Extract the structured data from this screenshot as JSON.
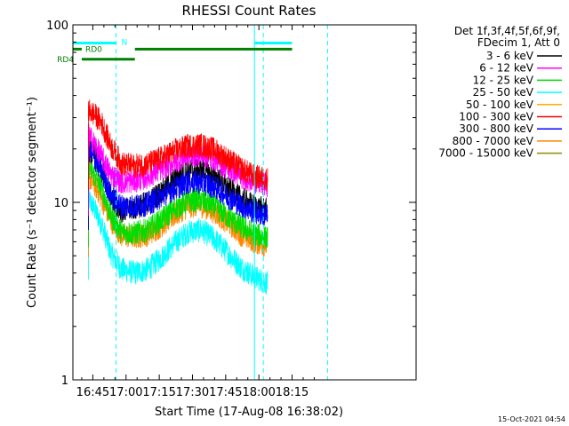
{
  "chart_data": {
    "type": "line",
    "title": "RHESSI Count Rates",
    "xlabel": "Start Time (17-Aug-08 16:38:02)",
    "ylabel": "Count Rate (s⁻¹ detector segment⁻¹)",
    "x_scale": "time",
    "y_scale": "log",
    "xlim_minutes": [
      -2,
      153
    ],
    "ylim": [
      1,
      100
    ],
    "x_ticks": [
      {
        "label": "16:45",
        "minute": 7
      },
      {
        "label": "17:00",
        "minute": 22
      },
      {
        "label": "17:15",
        "minute": 37
      },
      {
        "label": "17:30",
        "minute": 52
      },
      {
        "label": "17:45",
        "minute": 67
      },
      {
        "label": "18:00",
        "minute": 82
      },
      {
        "label": "18:15",
        "minute": 97
      }
    ],
    "y_ticks": [
      {
        "label": "1",
        "value": 1
      },
      {
        "label": "10",
        "value": 10
      },
      {
        "label": "100",
        "value": 100
      }
    ],
    "legend": {
      "header": [
        "Det 1f,3f,4f,5f,6f,9f,",
        "FDecim 1, Att 0"
      ],
      "placement": "right"
    },
    "time_x": [
      -2.0,
      4.8,
      5.0,
      8.0,
      11.0,
      15.0,
      20.0,
      26.0,
      32.0,
      38.0,
      44.0,
      50.0,
      56.0,
      62.0,
      68.0,
      74.0,
      80.0,
      86.0,
      92.0,
      97.0
    ],
    "series": [
      {
        "name": "3 - 6 keV",
        "color": "#000000",
        "values": [
          null,
          null,
          20.0,
          18.0,
          15.0,
          11.0,
          9.0,
          9.3,
          10.0,
          11.5,
          13.5,
          15.0,
          15.3,
          14.0,
          12.0,
          10.5,
          9.5,
          9.0,
          null,
          null
        ]
      },
      {
        "name": "6 - 12 keV",
        "color": "#ff00ff",
        "values": [
          null,
          null,
          24.0,
          21.0,
          18.0,
          14.5,
          13.0,
          13.2,
          14.0,
          15.5,
          17.0,
          18.5,
          18.6,
          17.5,
          15.5,
          14.0,
          13.0,
          12.5,
          null,
          null
        ]
      },
      {
        "name": "12 - 25 keV",
        "color": "#00dd00",
        "values": [
          null,
          null,
          16.0,
          14.0,
          12.0,
          8.5,
          6.8,
          6.7,
          7.0,
          8.0,
          9.2,
          10.2,
          10.3,
          9.5,
          8.3,
          7.3,
          6.6,
          6.3,
          null,
          null
        ]
      },
      {
        "name": "25 - 50 keV",
        "color": "#00ffff",
        "values": [
          null,
          null,
          10.5,
          9.0,
          7.5,
          5.2,
          4.2,
          4.0,
          4.2,
          4.9,
          5.9,
          6.8,
          7.0,
          6.2,
          5.2,
          4.3,
          3.8,
          3.5,
          null,
          null
        ]
      },
      {
        "name": "50 - 100 keV",
        "color": "#ffaa00",
        "values": [
          null,
          null,
          null,
          null,
          null,
          null,
          null,
          null,
          null,
          null,
          null,
          null,
          null,
          null,
          null,
          null,
          null,
          null,
          null,
          null
        ]
      },
      {
        "name": "100 - 300 keV",
        "color": "#ff0000",
        "values": [
          null,
          null,
          33.0,
          31.0,
          28.0,
          21.0,
          16.5,
          16.0,
          16.5,
          17.8,
          19.5,
          20.8,
          21.0,
          19.8,
          17.5,
          15.5,
          14.0,
          13.5,
          null,
          null
        ]
      },
      {
        "name": "300 - 800 keV",
        "color": "#0000ff",
        "values": [
          null,
          null,
          20.0,
          17.5,
          15.0,
          11.0,
          9.5,
          9.5,
          9.8,
          10.8,
          12.0,
          13.0,
          13.0,
          12.2,
          10.8,
          9.6,
          8.8,
          8.4,
          null,
          null
        ]
      },
      {
        "name": "800 - 7000 keV",
        "color": "#ff8800",
        "values": [
          null,
          null,
          14.0,
          12.5,
          10.5,
          8.0,
          6.5,
          6.4,
          6.6,
          7.4,
          8.5,
          9.5,
          9.6,
          8.8,
          7.7,
          6.6,
          6.0,
          5.7,
          null,
          null
        ]
      },
      {
        "name": "7000 - 15000 keV",
        "color": "#8c8c00",
        "values": [
          null,
          null,
          null,
          null,
          null,
          null,
          null,
          null,
          null,
          null,
          null,
          null,
          null,
          null,
          null,
          null,
          null,
          null,
          null,
          null
        ]
      }
    ],
    "flag_bars": [
      {
        "label": "N",
        "color": "#00ffff",
        "minute_ranges": [
          [
            -2.0,
            17.5
          ],
          [
            80.0,
            97.0
          ]
        ],
        "y_level": 79
      },
      {
        "label": "RD0",
        "color": "#008000",
        "minute_ranges": [
          [
            -2.0,
            2.0
          ],
          [
            26.0,
            97.0
          ]
        ],
        "y_level": 73
      },
      {
        "label": "RD4",
        "color": "#008000",
        "minute_ranges": [
          [
            2.0,
            26.0
          ]
        ],
        "y_level": 64
      }
    ],
    "vertical_markers": [
      {
        "minute": 17.5,
        "style": "dashed",
        "color": "#00ffff"
      },
      {
        "minute": 80.0,
        "style": "solid",
        "color": "#00ffff"
      },
      {
        "minute": 84.0,
        "style": "dashed",
        "color": "#00ffff"
      },
      {
        "minute": 113.0,
        "style": "dashed",
        "color": "#00ffff"
      }
    ]
  },
  "footer_timestamp": "15-Oct-2021 04:54"
}
